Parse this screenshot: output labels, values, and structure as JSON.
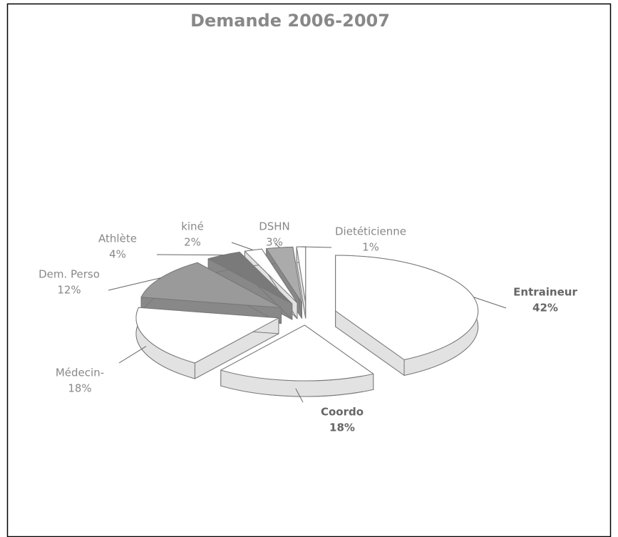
{
  "chart_data": {
    "type": "pie",
    "title": "Demande 2006-2007",
    "categories": [
      "Entraineur",
      "Coordo",
      "Médecin-",
      "Dem. Perso",
      "Athlète",
      "kiné",
      "DSHN",
      "Dietéticienne"
    ],
    "values": [
      42,
      18,
      18,
      12,
      4,
      2,
      3,
      1
    ],
    "value_labels": [
      "42%",
      "18%",
      "18%",
      "12%",
      "4%",
      "2%",
      "3%",
      "1%"
    ],
    "colors": [
      "#ffffff",
      "#ffffff",
      "#ffffff",
      "#9a9a9a",
      "#7a7a7a",
      "#ffffff",
      "#ababab",
      "#ffffff"
    ]
  }
}
